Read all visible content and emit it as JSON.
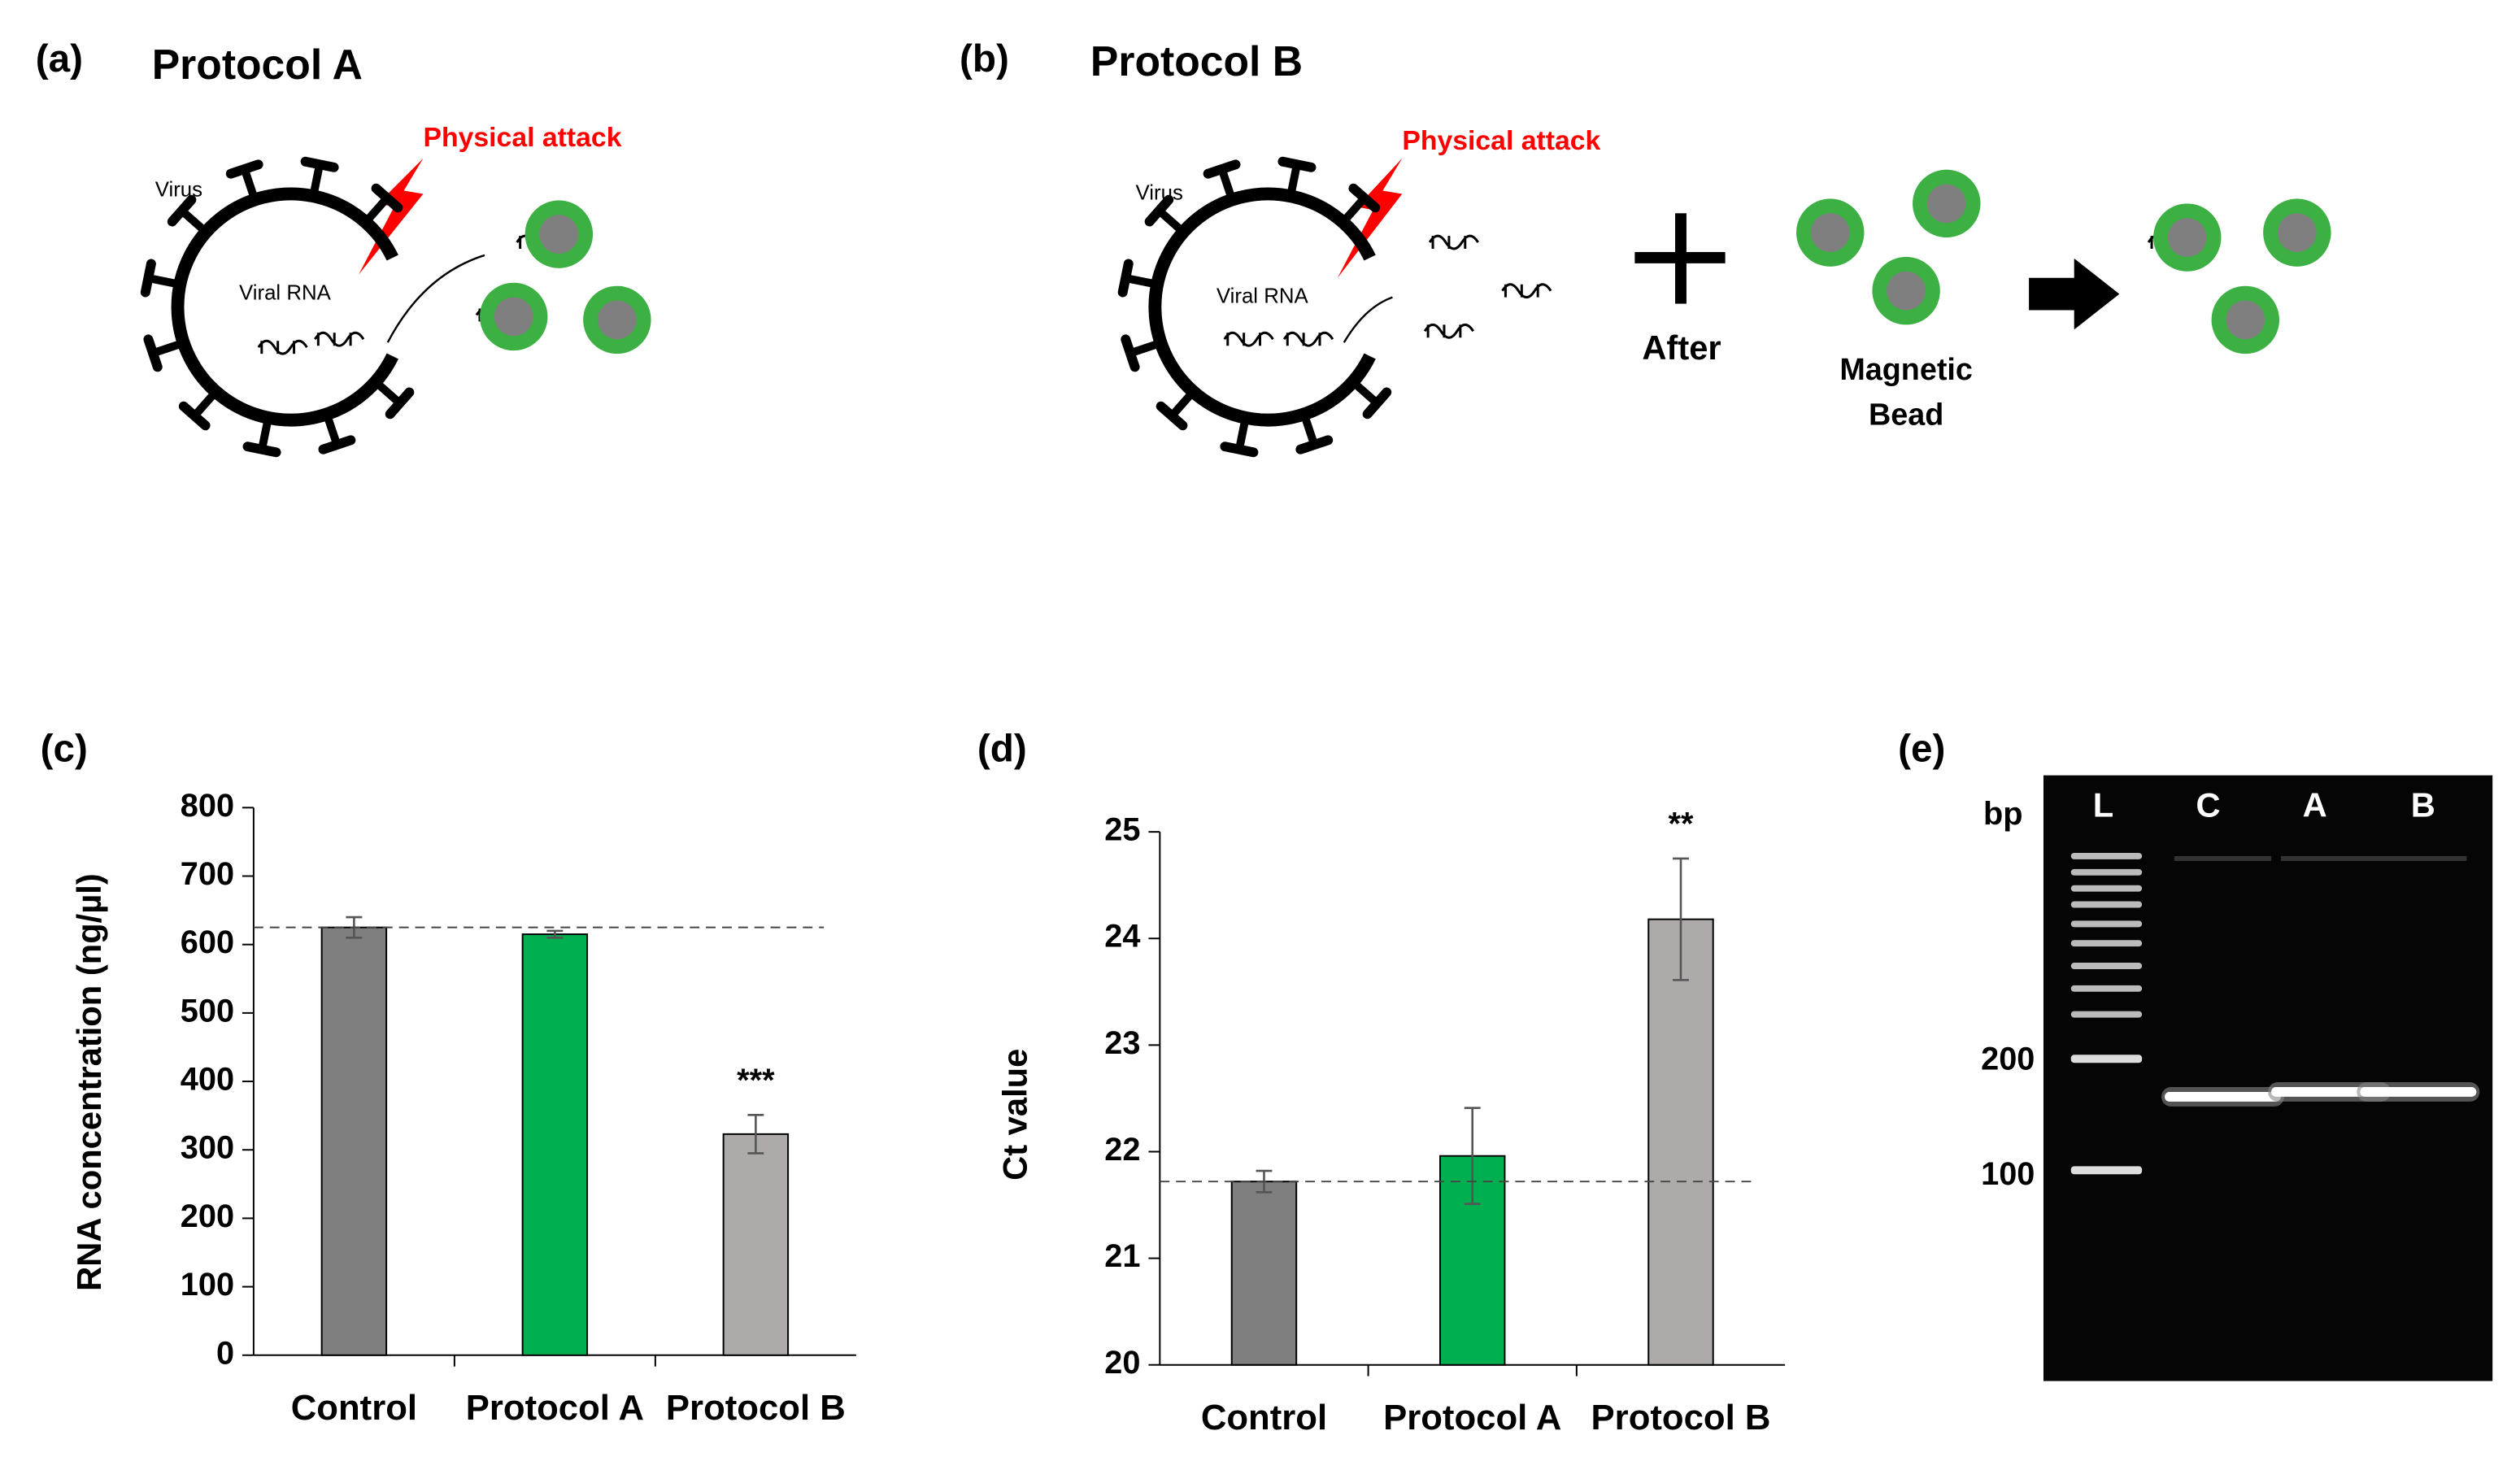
{
  "panels": {
    "a": {
      "label": "(a)",
      "title": "Protocol A",
      "virus": "Virus",
      "rna": "Viral RNA",
      "attack": "Physical attack"
    },
    "b": {
      "label": "(b)",
      "title": "Protocol B",
      "virus": "Virus",
      "rna": "Viral RNA",
      "attack": "Physical attack",
      "after": "After",
      "bead": [
        "Magnetic",
        "Bead"
      ]
    }
  },
  "chart_data": [
    {
      "type": "bar",
      "label": "(c)",
      "y_label": "RNA concentration (ng/µl)",
      "categories": [
        "Control",
        "Protocol A",
        "Protocol B"
      ],
      "values": [
        625,
        615,
        323
      ],
      "errors": [
        15,
        5,
        28
      ],
      "colors": [
        "#7f7f7f",
        "#00b050",
        "#aeaaaa"
      ],
      "significance": [
        null,
        null,
        "***"
      ],
      "reference_line": 625,
      "ylim": [
        0,
        800
      ],
      "yticks": [
        0,
        100,
        200,
        300,
        400,
        500,
        600,
        700,
        800
      ]
    },
    {
      "type": "bar",
      "label": "(d)",
      "y_label": "Ct value",
      "categories": [
        "Control",
        "Protocol A",
        "Protocol B"
      ],
      "values": [
        21.72,
        21.96,
        24.18
      ],
      "errors": [
        0.1,
        0.45,
        0.57
      ],
      "colors": [
        "#7f7f7f",
        "#00b050",
        "#aeaaaa"
      ],
      "significance": [
        null,
        null,
        "**"
      ],
      "reference_line": 21.72,
      "ylim": [
        20,
        25
      ],
      "yticks": [
        20,
        21,
        22,
        23,
        24,
        25
      ]
    }
  ],
  "gel": {
    "label": "(e)",
    "unit": "bp",
    "lanes": [
      "L",
      "C",
      "A",
      "B"
    ],
    "markers": [
      200,
      100
    ]
  }
}
